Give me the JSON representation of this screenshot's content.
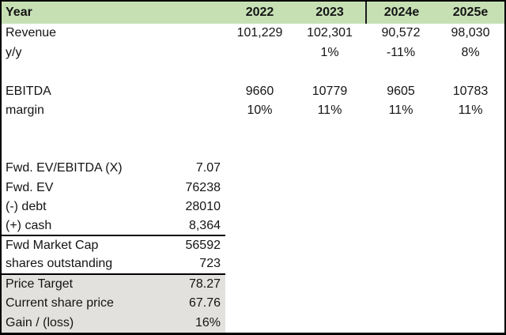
{
  "colors": {
    "header_bg": "#c6e0b4",
    "highlight_bg": "#e3e1de",
    "border": "#000000"
  },
  "table": {
    "header": {
      "label": "Year",
      "years": [
        "2022",
        "2023",
        "2024e",
        "2025e"
      ]
    },
    "rows": [
      {
        "label": "Revenue",
        "v1": "101,229",
        "v2": "102,301",
        "v3": "90,572",
        "v4": "98,030",
        "value": ""
      },
      {
        "label": "y/y",
        "v1": "",
        "v2": "1%",
        "v3": "-11%",
        "v4": "8%",
        "value": ""
      },
      {
        "label": "",
        "v1": "",
        "v2": "",
        "v3": "",
        "v4": "",
        "value": ""
      },
      {
        "label": "EBITDA",
        "v1": "9660",
        "v2": "10779",
        "v3": "9605",
        "v4": "10783",
        "value": ""
      },
      {
        "label": "margin",
        "v1": "10%",
        "v2": "11%",
        "v3": "11%",
        "v4": "11%",
        "value": ""
      },
      {
        "label": "",
        "v1": "",
        "v2": "",
        "v3": "",
        "v4": "",
        "value": ""
      },
      {
        "label": "",
        "v1": "",
        "v2": "",
        "v3": "",
        "v4": "",
        "value": ""
      },
      {
        "label": "Fwd. EV/EBITDA (X)",
        "v1": "",
        "v2": "",
        "v3": "",
        "v4": "",
        "value": "7.07"
      },
      {
        "label": "Fwd. EV",
        "v1": "",
        "v2": "",
        "v3": "",
        "v4": "",
        "value": "76238"
      },
      {
        "label": "(-) debt",
        "v1": "",
        "v2": "",
        "v3": "",
        "v4": "",
        "value": "28010"
      },
      {
        "label": "(+) cash",
        "v1": "",
        "v2": "",
        "v3": "",
        "v4": "",
        "value": "8,364"
      },
      {
        "label": "Fwd Market Cap",
        "v1": "",
        "v2": "",
        "v3": "",
        "v4": "",
        "value": "56592"
      },
      {
        "label": "shares outstanding",
        "v1": "",
        "v2": "",
        "v3": "",
        "v4": "",
        "value": "723"
      },
      {
        "label": "Price Target",
        "v1": "",
        "v2": "",
        "v3": "",
        "v4": "",
        "value": "78.27"
      },
      {
        "label": "Current share price",
        "v1": "",
        "v2": "",
        "v3": "",
        "v4": "",
        "value": "67.76"
      },
      {
        "label": "Gain / (loss)",
        "v1": "",
        "v2": "",
        "v3": "",
        "v4": "",
        "value": "16%"
      }
    ]
  }
}
